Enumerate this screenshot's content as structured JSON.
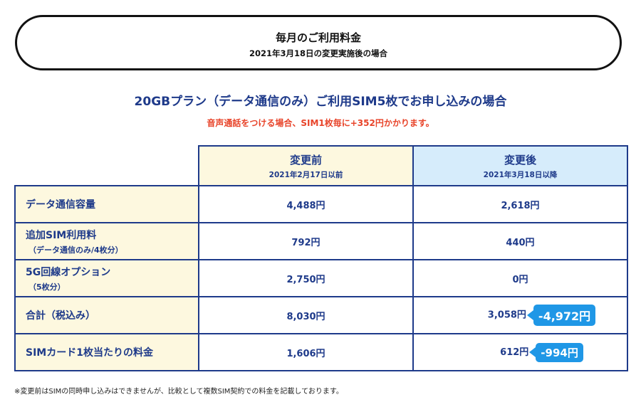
{
  "header": {
    "title": "毎月のご利用料金",
    "subtitle": "2021年3月18日の変更実施後の場合"
  },
  "plan_title": "20GBプラン（データ通信のみ）ご利用SIM5枚でお申し込みの場合",
  "voice_note": "音声通話をつける場合、SIM1枚毎に+352円かかります。",
  "table": {
    "before": {
      "title": "変更前",
      "date": "2021年2月17日以前"
    },
    "after": {
      "title": "変更後",
      "date": "2021年3月18日以降"
    },
    "rows": [
      {
        "label": "データ通信容量",
        "sublabel": "",
        "before": "4,488円",
        "after": "2,618円",
        "badge": ""
      },
      {
        "label": "追加SIM利用料",
        "sublabel": "（データ通信のみ/4枚分）",
        "before": "792円",
        "after": "440円",
        "badge": ""
      },
      {
        "label": "5G回線オプション",
        "sublabel": "（5枚分）",
        "before": "2,750円",
        "after": "0円",
        "badge": ""
      },
      {
        "label": "合計（税込み）",
        "sublabel": "",
        "before": "8,030円",
        "after": "3,058円",
        "badge": "-4,972円"
      },
      {
        "label": "SIMカード1枚当たりの料金",
        "sublabel": "",
        "before": "1,606円",
        "after": "612円",
        "badge": "-994円"
      }
    ]
  },
  "footnote": "※変更前はSIMの同時申し込みはできませんが、比較として複数SIM契約での料金を記載しております。",
  "colors": {
    "accent_navy": "#1e3a8a",
    "note_red": "#e8442a",
    "badge_blue": "#1f97e6",
    "before_bg": "#fdf8df",
    "after_bg": "#d6ecfb"
  }
}
